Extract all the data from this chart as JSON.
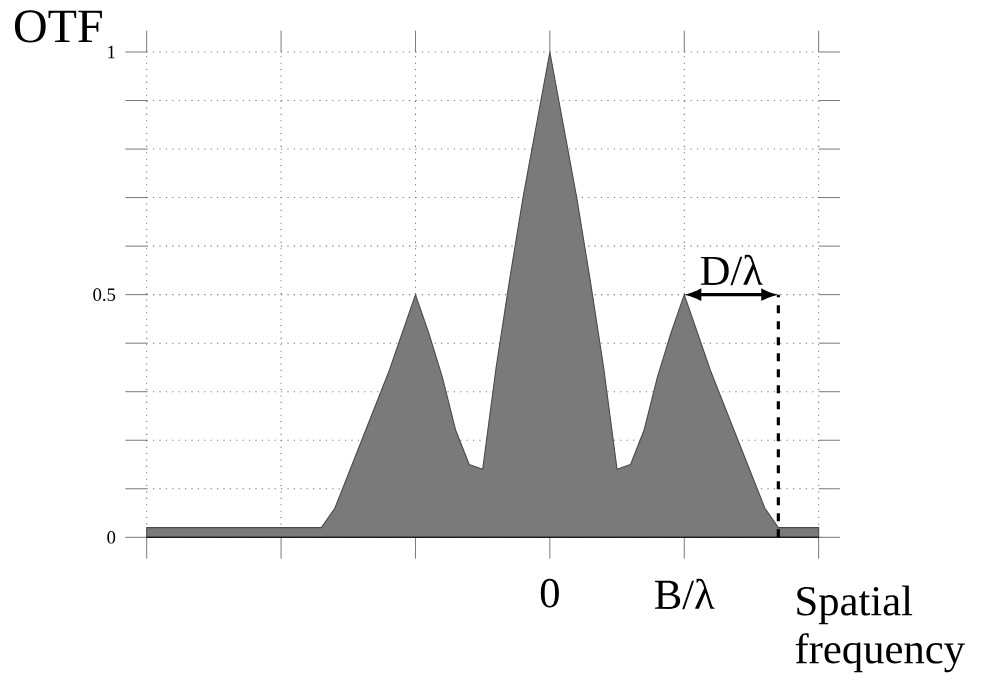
{
  "chart_data": {
    "type": "area",
    "xlabel": "Spatial frequency",
    "ylabel": "OTF",
    "categories": [
      null,
      null,
      null,
      null,
      null,
      null,
      null,
      null,
      null,
      null,
      null,
      null,
      null,
      null,
      null,
      null,
      null,
      null,
      null,
      null,
      null,
      null,
      null,
      null,
      null,
      null,
      null,
      null,
      null,
      null,
      "0",
      null,
      null,
      null,
      null,
      null,
      null,
      null,
      null,
      null,
      "B/λ",
      null,
      null,
      null,
      null,
      null,
      null,
      null,
      null,
      null,
      null
    ],
    "series": [
      {
        "color": "#7a7a7a",
        "values": [
          0.02,
          0.02,
          0.02,
          0.02,
          0.02,
          0.02,
          0.02,
          0.02,
          0.02,
          0.02,
          0.02,
          0.02,
          0.02,
          0.02,
          0.06,
          0.13,
          0.2,
          0.27,
          0.34,
          0.42,
          0.5,
          0.42,
          0.33,
          0.22,
          0.15,
          0.14,
          0.35,
          0.53,
          0.7,
          0.85,
          1.0,
          0.85,
          0.7,
          0.53,
          0.35,
          0.14,
          0.15,
          0.22,
          0.33,
          0.42,
          0.5,
          0.42,
          0.34,
          0.27,
          0.2,
          0.13,
          0.06,
          0.02,
          0.02,
          0.02,
          0.02
        ]
      }
    ],
    "ylim": [
      0,
      1
    ],
    "yticks": [
      {
        "value": 0,
        "label": "0"
      },
      {
        "value": 0.1,
        "label": null
      },
      {
        "value": 0.2,
        "label": null
      },
      {
        "value": 0.3,
        "label": null
      },
      {
        "value": 0.4,
        "label": null
      },
      {
        "value": 0.5,
        "label": "0.5"
      },
      {
        "value": 0.6,
        "label": null
      },
      {
        "value": 0.7,
        "label": null
      },
      {
        "value": 0.8,
        "label": null
      },
      {
        "value": 0.9,
        "label": null
      },
      {
        "value": 1,
        "label": "1"
      }
    ],
    "grid": true,
    "annotations": [
      "D/λ"
    ]
  }
}
